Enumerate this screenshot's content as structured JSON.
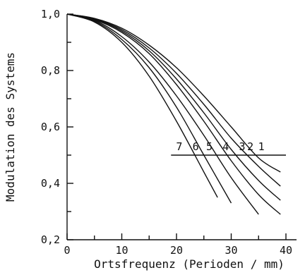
{
  "chart_data": {
    "type": "line",
    "xlabel": "Ortsfrequenz (Perioden / mm)",
    "ylabel": "Modulation des Systems",
    "xlim": [
      0,
      40
    ],
    "ylim": [
      0.2,
      1.0
    ],
    "xticks": [
      0,
      10,
      20,
      30,
      40
    ],
    "xtick_labels": [
      "0",
      "10",
      "20",
      "30",
      "40"
    ],
    "yticks": [
      0.2,
      0.4,
      0.6,
      0.8,
      1.0
    ],
    "ytick_labels": [
      "0,2",
      "0,4",
      "0,6",
      "0,8",
      "1,0"
    ],
    "grid": false,
    "reference_line": {
      "y": 0.5,
      "x_start": 19,
      "x_end": 40
    },
    "series": [
      {
        "name": "1",
        "label_x": 35.5,
        "x": [
          0,
          5,
          10,
          15,
          20,
          25,
          30,
          35,
          39
        ],
        "y": [
          1.0,
          0.985,
          0.95,
          0.89,
          0.81,
          0.71,
          0.6,
          0.49,
          0.44
        ]
      },
      {
        "name": "2",
        "label_x": 33.5,
        "x": [
          0,
          5,
          10,
          15,
          20,
          25,
          30,
          35,
          39
        ],
        "y": [
          1.0,
          0.984,
          0.945,
          0.88,
          0.79,
          0.68,
          0.56,
          0.46,
          0.39
        ]
      },
      {
        "name": "3",
        "label_x": 32,
        "x": [
          0,
          5,
          10,
          15,
          20,
          25,
          30,
          35,
          39
        ],
        "y": [
          1.0,
          0.982,
          0.94,
          0.87,
          0.77,
          0.65,
          0.52,
          0.41,
          0.34
        ]
      },
      {
        "name": "4",
        "label_x": 29,
        "x": [
          0,
          5,
          10,
          15,
          20,
          25,
          30,
          35,
          39
        ],
        "y": [
          1.0,
          0.98,
          0.935,
          0.86,
          0.75,
          0.62,
          0.48,
          0.36,
          0.29
        ]
      },
      {
        "name": "5",
        "label_x": 26,
        "x": [
          0,
          5,
          10,
          15,
          20,
          25,
          30,
          35
        ],
        "y": [
          1.0,
          0.978,
          0.92,
          0.83,
          0.71,
          0.57,
          0.42,
          0.29
        ]
      },
      {
        "name": "6",
        "label_x": 23.5,
        "x": [
          0,
          5,
          10,
          15,
          20,
          25,
          30
        ],
        "y": [
          1.0,
          0.975,
          0.91,
          0.81,
          0.67,
          0.5,
          0.33
        ]
      },
      {
        "name": "7",
        "label_x": 20.5,
        "x": [
          0,
          5,
          10,
          15,
          20,
          25,
          27.5
        ],
        "y": [
          1.0,
          0.972,
          0.9,
          0.78,
          0.62,
          0.44,
          0.35
        ]
      }
    ]
  }
}
